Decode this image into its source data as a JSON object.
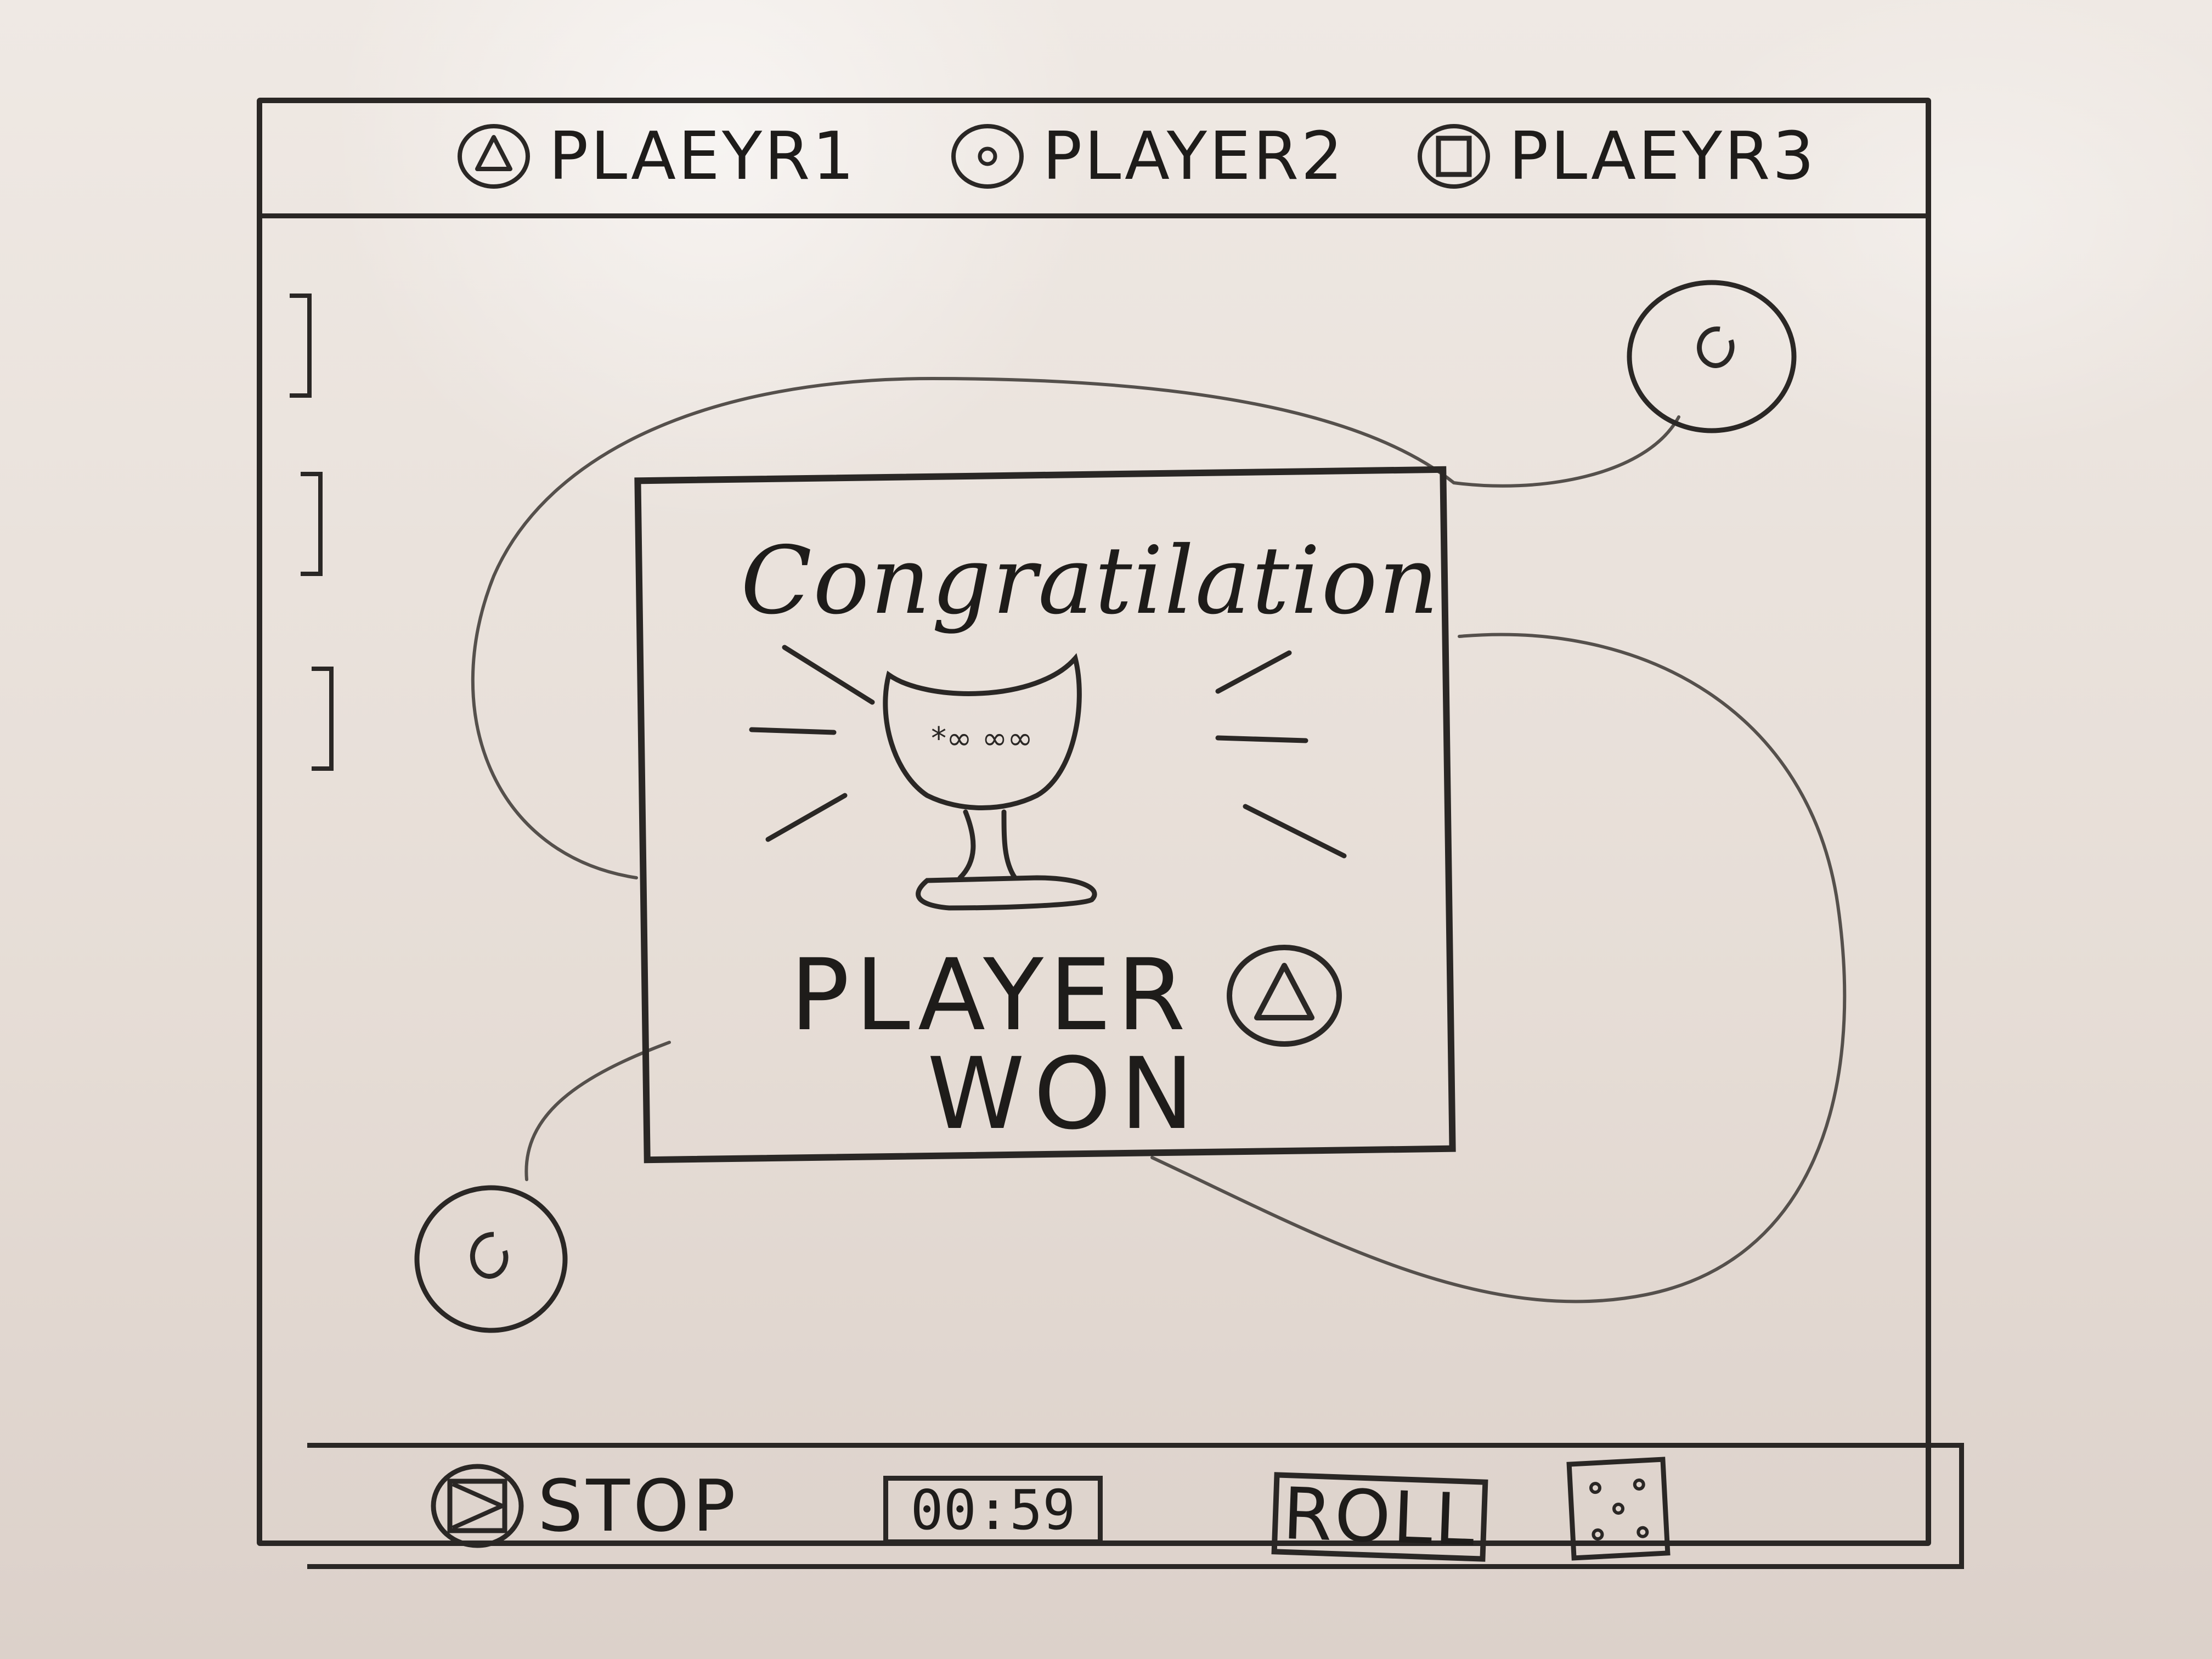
{
  "players": [
    {
      "label": "PLAEYR1",
      "icon": "triangle-icon"
    },
    {
      "label": "PLAYER2",
      "icon": "circle-icon"
    },
    {
      "label": "PLAEYR3",
      "icon": "square-icon"
    }
  ],
  "popup": {
    "title": "Congratilation",
    "winner_line1": "PLAYER",
    "winner_line2": "WON",
    "winner_icon": "triangle-icon",
    "trophy_text": "*∞ ∞∞"
  },
  "controls": {
    "stop_label": "STOP",
    "timer": "00:59",
    "roll_label": "ROLL",
    "dice_icon": "dice-icon"
  },
  "colors": {
    "ink": "#2a2725",
    "board": "#e9e2dc"
  }
}
